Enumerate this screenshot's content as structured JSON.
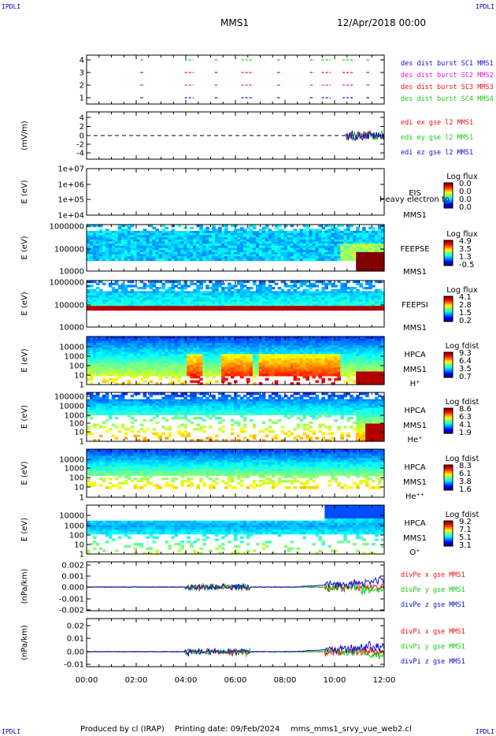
{
  "corners": {
    "tl": "IPDLI",
    "tr": "IPDLI",
    "bl": "IPDLI",
    "br": "IPDLI"
  },
  "header": {
    "spacecraft": "MMS1",
    "date": "12/Apr/2018 00:00"
  },
  "footer": {
    "produced": "Produced by cl (IRAP)",
    "printing": "Printing date: 09/Feb/2024",
    "file": "mms_mms1_srvy_vue_web2.cl"
  },
  "colors": {
    "red": "#ee1111",
    "green": "#11cc11",
    "blue": "#1111cc",
    "magenta": "#dd11dd"
  },
  "chart_data": [
    {
      "type": "line",
      "panel": "burst",
      "x": [
        "00:00",
        "02:00",
        "04:00",
        "06:00",
        "08:00",
        "10:00",
        "12:00"
      ],
      "yticks": [
        "4",
        "3",
        "2",
        "1"
      ],
      "legend": [
        {
          "label": "des dist burst SC1 MMS1",
          "color": "#1111cc"
        },
        {
          "label": "des dist burst SC2 MMS2",
          "color": "#dd11dd"
        },
        {
          "label": "des dist burst SC3 MMS3",
          "color": "#ee1111"
        },
        {
          "label": "des dist burst SC4 MMS4",
          "color": "#11cc11"
        }
      ]
    },
    {
      "type": "line",
      "panel": "edi",
      "ylabel": "(mV/m)",
      "yticks": [
        "4",
        "2",
        "0",
        "-2",
        "-4"
      ],
      "legend": [
        {
          "label": "edi ex gse l2 MMS1",
          "color": "#ee1111"
        },
        {
          "label": "edi ey gse l2 MMS1",
          "color": "#11cc11"
        },
        {
          "label": "edi ez gse l2 MMS1",
          "color": "#1111cc"
        }
      ]
    },
    {
      "type": "heatmap",
      "panel": "eis",
      "ylabel": "E (eV)",
      "yticks": [
        "1e+07",
        "1e+06",
        "1e+05",
        "1e+04"
      ],
      "labels": [
        "EIS",
        "MMS1"
      ],
      "note": "Heavy electron to",
      "cb_title": "Log flux",
      "cb_ticks": [
        "0.0",
        "0.0",
        "0.0",
        "0.0"
      ]
    },
    {
      "type": "heatmap",
      "panel": "feepse",
      "ylabel": "E (eV)",
      "yticks": [
        "1000000",
        "100000",
        "10000"
      ],
      "labels": [
        "FEEPSE",
        "MMS1"
      ],
      "cb_title": "Log flux",
      "cb_ticks": [
        "4.9",
        "3.5",
        "1.3",
        "-0.5"
      ]
    },
    {
      "type": "heatmap",
      "panel": "feepsi",
      "ylabel": "E (eV)",
      "yticks": [
        "1000000",
        "100000",
        "10000"
      ],
      "labels": [
        "FEEPSI",
        "MMS1"
      ],
      "cb_title": "Log flux",
      "cb_ticks": [
        "4.1",
        "2.8",
        "1.5",
        "0.2"
      ]
    },
    {
      "type": "heatmap",
      "panel": "hpca-h",
      "ylabel": "E (eV)",
      "yticks": [
        "10000",
        "1000",
        "100",
        "10",
        "1"
      ],
      "labels": [
        "HPCA",
        "MMS1",
        "H⁺"
      ],
      "cb_title": "Log fdist",
      "cb_ticks": [
        "9.3",
        "6.4",
        "3.5",
        "0.7"
      ]
    },
    {
      "type": "heatmap",
      "panel": "hpca-he",
      "ylabel": "E (eV)",
      "yticks": [
        "100000",
        "10000",
        "1000",
        "100",
        "10",
        "1"
      ],
      "labels": [
        "HPCA",
        "MMS1",
        "He⁺"
      ],
      "cb_title": "Log fdist",
      "cb_ticks": [
        "8.6",
        "6.3",
        "4.1",
        "1.9"
      ]
    },
    {
      "type": "heatmap",
      "panel": "hpca-hepp",
      "ylabel": "E (eV)",
      "yticks": [
        "10000",
        "1000",
        "100",
        "10",
        "1"
      ],
      "labels": [
        "HPCA",
        "MMS1",
        "He⁺⁺"
      ],
      "cb_title": "Log fdist",
      "cb_ticks": [
        "8.3",
        "6.1",
        "3.8",
        "1.6"
      ]
    },
    {
      "type": "heatmap",
      "panel": "hpca-o",
      "ylabel": "E (eV)",
      "yticks": [
        "10000",
        "1000",
        "100",
        "10",
        "1"
      ],
      "labels": [
        "HPCA",
        "MMS1",
        "O⁺"
      ],
      "cb_title": "Log fdist",
      "cb_ticks": [
        "9.2",
        "7.1",
        "5.1",
        "3.1"
      ]
    },
    {
      "type": "line",
      "panel": "divpe",
      "ylabel": "(nPa/km)",
      "yticks": [
        "0.002",
        "0.001",
        "0.000",
        "-0.001",
        "-0.002"
      ],
      "legend": [
        {
          "label": "divPe x gse MMS1",
          "color": "#ee1111"
        },
        {
          "label": "divPe y gse MMS1",
          "color": "#11cc11"
        },
        {
          "label": "divPe z gse MMS1",
          "color": "#1111cc"
        }
      ]
    },
    {
      "type": "line",
      "panel": "divpi",
      "ylabel": "(nPa/km)",
      "yticks": [
        "0.02",
        "0.01",
        "0.00",
        "-0.01"
      ],
      "legend": [
        {
          "label": "divPi x gse MMS1",
          "color": "#ee1111"
        },
        {
          "label": "divPi y gse MMS1",
          "color": "#11cc11"
        },
        {
          "label": "divPi z gse MMS1",
          "color": "#1111cc"
        }
      ]
    }
  ]
}
